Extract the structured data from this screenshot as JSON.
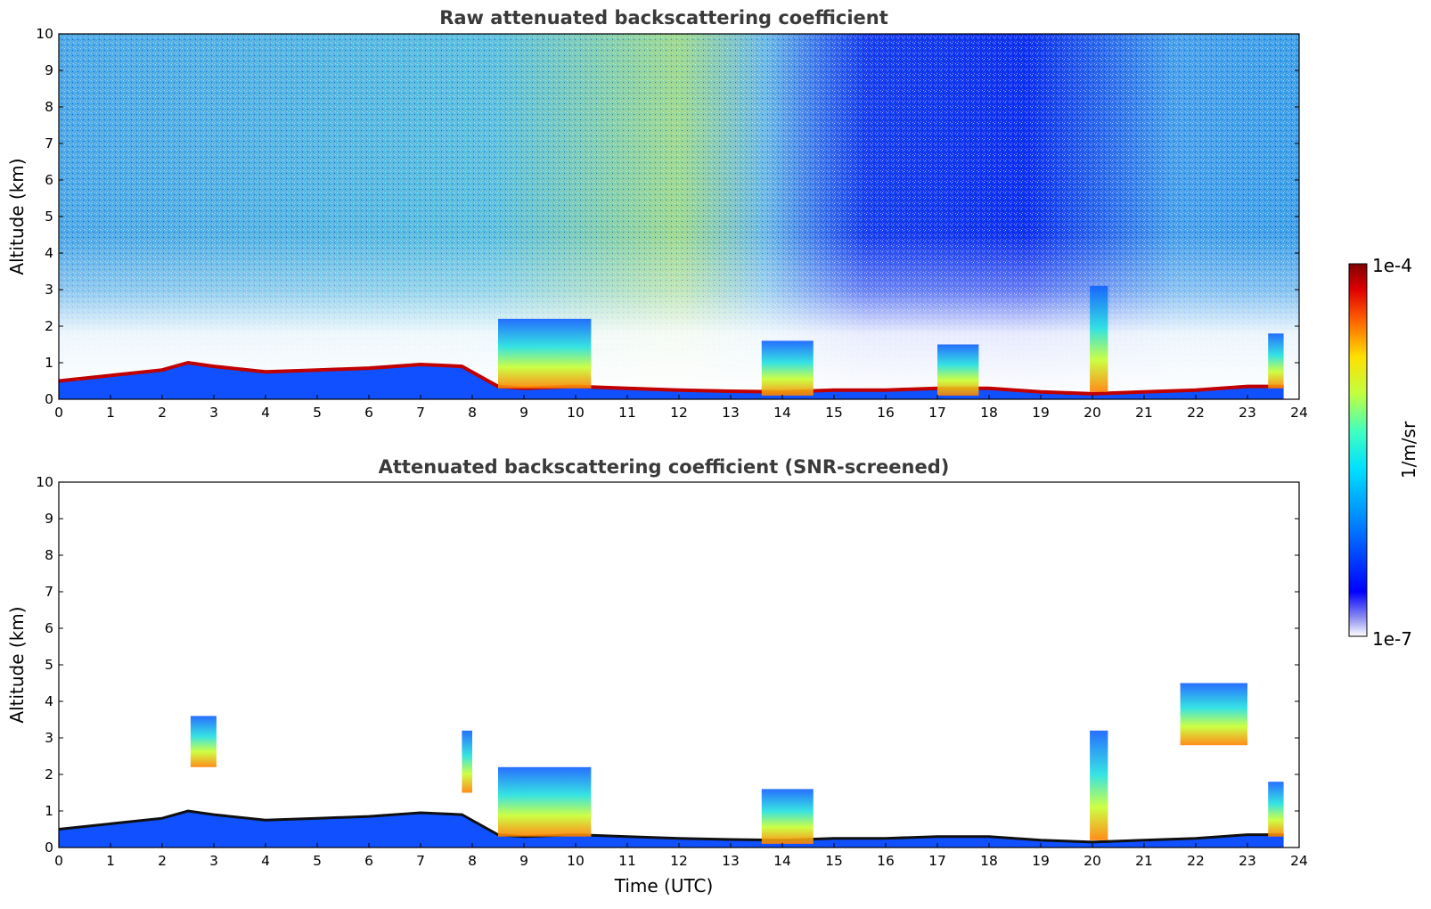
{
  "chart_data": [
    {
      "type": "heatmap",
      "title": "Raw attenuated backscattering coefficient",
      "xlabel": "",
      "ylabel": "Altitude (km)",
      "xlim": [
        0,
        24
      ],
      "ylim": [
        0,
        10
      ],
      "x_ticks": [
        "0",
        "1",
        "2",
        "3",
        "4",
        "5",
        "6",
        "7",
        "8",
        "9",
        "10",
        "11",
        "12",
        "13",
        "14",
        "15",
        "16",
        "17",
        "18",
        "19",
        "20",
        "21",
        "22",
        "23",
        "24"
      ],
      "y_ticks": [
        "0",
        "1",
        "2",
        "3",
        "4",
        "5",
        "6",
        "7",
        "8",
        "9",
        "10"
      ],
      "boundary_layer_top_km": {
        "x": [
          0,
          1,
          2,
          2.5,
          3,
          4,
          5,
          6,
          7,
          7.8,
          8.5,
          9,
          10,
          11,
          12,
          13,
          14,
          15,
          16,
          17,
          18,
          19,
          20,
          21,
          22,
          23,
          23.7
        ],
        "y": [
          0.5,
          0.65,
          0.8,
          1.0,
          0.9,
          0.75,
          0.8,
          0.85,
          0.95,
          0.9,
          0.35,
          0.3,
          0.35,
          0.3,
          0.25,
          0.22,
          0.2,
          0.25,
          0.25,
          0.3,
          0.3,
          0.2,
          0.15,
          0.2,
          0.25,
          0.35,
          0.35
        ]
      },
      "cloud_features": [
        {
          "x_start": 8.5,
          "x_end": 10.3,
          "bottom_km": 0.3,
          "top_km": 2.2
        },
        {
          "x_start": 13.6,
          "x_end": 14.6,
          "bottom_km": 0.1,
          "top_km": 1.6
        },
        {
          "x_start": 17.0,
          "x_end": 17.8,
          "bottom_km": 0.1,
          "top_km": 1.5
        },
        {
          "x_start": 19.95,
          "x_end": 20.3,
          "bottom_km": 0.2,
          "top_km": 3.1
        },
        {
          "x_start": 23.4,
          "x_end": 23.7,
          "bottom_km": 0.3,
          "top_km": 1.8
        }
      ]
    },
    {
      "type": "heatmap",
      "title": "Attenuated backscattering coefficient (SNR-screened)",
      "xlabel": "Time (UTC)",
      "ylabel": "Altitude (km)",
      "xlim": [
        0,
        24
      ],
      "ylim": [
        0,
        10
      ],
      "x_ticks": [
        "0",
        "1",
        "2",
        "3",
        "4",
        "5",
        "6",
        "7",
        "8",
        "9",
        "10",
        "11",
        "12",
        "13",
        "14",
        "15",
        "16",
        "17",
        "18",
        "19",
        "20",
        "21",
        "22",
        "23",
        "24"
      ],
      "y_ticks": [
        "0",
        "1",
        "2",
        "3",
        "4",
        "5",
        "6",
        "7",
        "8",
        "9",
        "10"
      ],
      "cloud_features": [
        {
          "x_start": 2.55,
          "x_end": 3.05,
          "bottom_km": 2.2,
          "top_km": 3.6
        },
        {
          "x_start": 7.8,
          "x_end": 8.0,
          "bottom_km": 1.5,
          "top_km": 3.2
        },
        {
          "x_start": 8.5,
          "x_end": 10.3,
          "bottom_km": 0.3,
          "top_km": 2.2
        },
        {
          "x_start": 13.6,
          "x_end": 14.6,
          "bottom_km": 0.1,
          "top_km": 1.6
        },
        {
          "x_start": 19.95,
          "x_end": 20.3,
          "bottom_km": 0.2,
          "top_km": 3.2
        },
        {
          "x_start": 21.7,
          "x_end": 23.0,
          "bottom_km": 2.8,
          "top_km": 4.5
        },
        {
          "x_start": 23.4,
          "x_end": 23.7,
          "bottom_km": 0.3,
          "top_km": 1.8
        }
      ]
    }
  ],
  "colorbar": {
    "max_label": "1e-4",
    "min_label": "1e-7",
    "label": "1/m/sr",
    "colormap": "jet"
  }
}
